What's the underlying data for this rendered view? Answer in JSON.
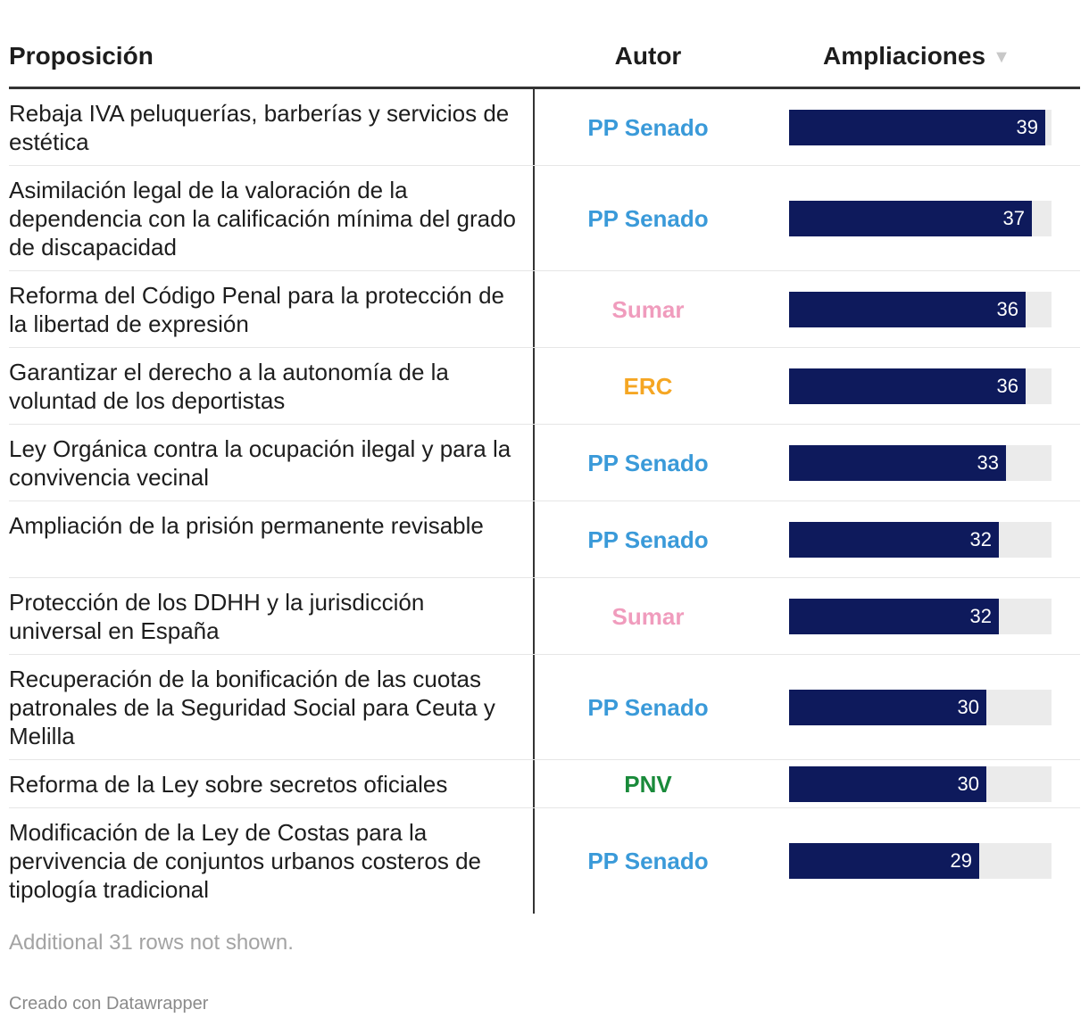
{
  "table": {
    "headers": {
      "proposicion": "Proposición",
      "autor": "Autor",
      "ampliaciones": "Ampliaciones"
    },
    "sort_icon": "sort-descending-icon",
    "notes": "Additional 31 rows not shown.",
    "footer": "Creado con Datawrapper"
  },
  "colors": {
    "bar": "#0e1a5c",
    "track": "#ebebeb",
    "PP Senado": "#3a9ad9",
    "Sumar": "#f09cbd",
    "ERC": "#f5a623",
    "PNV": "#198a3a"
  },
  "chart_data": {
    "type": "table",
    "title": "",
    "columns": [
      "Proposición",
      "Autor",
      "Ampliaciones"
    ],
    "bar_max": 40,
    "rows": [
      {
        "proposicion": "Rebaja IVA peluquerías, barberías y servicios de estética",
        "autor": "PP Senado",
        "ampliaciones": 39
      },
      {
        "proposicion": "Asimilación legal de la valoración de la dependencia con la calificación mínima del grado de discapacidad",
        "autor": "PP Senado",
        "ampliaciones": 37
      },
      {
        "proposicion": "Reforma del Código Penal para la protección de la libertad de expresión",
        "autor": "Sumar",
        "ampliaciones": 36
      },
      {
        "proposicion": "Garantizar el derecho a la autonomía de la voluntad de los deportistas",
        "autor": "ERC",
        "ampliaciones": 36
      },
      {
        "proposicion": "Ley Orgánica contra la ocupación ilegal y para la convivencia vecinal",
        "autor": "PP Senado",
        "ampliaciones": 33
      },
      {
        "proposicion": "Ampliación de la prisión permanente revisable",
        "autor": "PP Senado",
        "ampliaciones": 32
      },
      {
        "proposicion": "Protección de los DDHH y la jurisdicción universal en España",
        "autor": "Sumar",
        "ampliaciones": 32
      },
      {
        "proposicion": "Recuperación de la bonificación de las cuotas patronales de la Seguridad Social para Ceuta y Melilla",
        "autor": "PP Senado",
        "ampliaciones": 30
      },
      {
        "proposicion": "Reforma de la Ley sobre secretos oficiales",
        "autor": "PNV",
        "ampliaciones": 30
      },
      {
        "proposicion": "Modificación de la Ley de Costas para la pervivencia de conjuntos urbanos costeros de tipología tradicional",
        "autor": "PP Senado",
        "ampliaciones": 29
      }
    ]
  }
}
